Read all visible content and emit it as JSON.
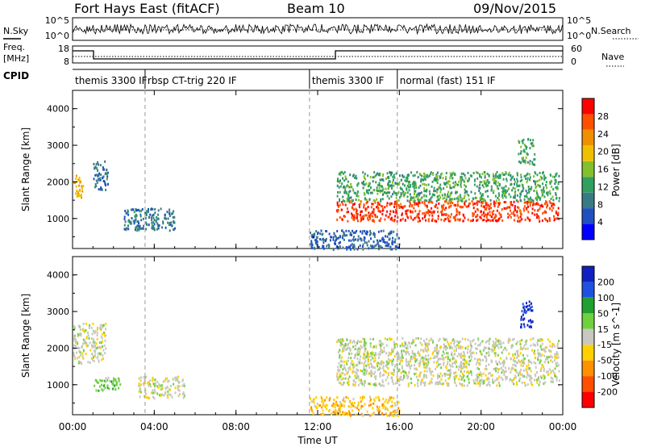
{
  "header": {
    "title": "Fort Hays East (fitACF)",
    "beam": "Beam 10",
    "date": "09/Nov/2015"
  },
  "strips": {
    "nsky_label": "N.Sky",
    "nsearch_label": "N.Search",
    "freq_label_1": "Freq.",
    "freq_label_2": "[MHz]",
    "nave_label": "Nave",
    "cpid_label": "CPID",
    "left_ticks_top": [
      "10^5",
      "10^0"
    ],
    "right_ticks_top": [
      "10^5",
      "10^0"
    ],
    "left_ticks_freq": [
      "18",
      "8"
    ],
    "right_ticks_freq": [
      "60",
      "0"
    ],
    "cpid_segments": [
      {
        "label": "themis 3300 IF",
        "start": 0.0
      },
      {
        "label": "rbsp CT-trig 220 IF",
        "start": 3.55
      },
      {
        "label": "themis 3300 IF",
        "start": 11.6
      },
      {
        "label": "normal (fast) 151 IF",
        "start": 15.9
      }
    ]
  },
  "axes": {
    "x_label": "Time UT",
    "x_ticks": [
      "00:00",
      "04:00",
      "08:00",
      "12:00",
      "16:00",
      "20:00",
      "00:00"
    ],
    "y_label": "Slant Range [km]",
    "y_ticks": [
      "1000",
      "2000",
      "3000",
      "4000"
    ]
  },
  "power_bar": {
    "label": "Power [dB]",
    "ticks": [
      "4",
      "8",
      "12",
      "16",
      "20",
      "24",
      "28"
    ],
    "colors": [
      "#0000ff",
      "#2050c0",
      "#3a7a86",
      "#30a060",
      "#84c02c",
      "#f0c000",
      "#f09000",
      "#ff5000",
      "#ff0000"
    ]
  },
  "velocity_bar": {
    "label": "Velocity [m s^-1]",
    "ticks": [
      "200",
      "100",
      "50",
      "15",
      "-15",
      "-50",
      "-100",
      "-200"
    ],
    "colors": [
      "#1020c0",
      "#2050e0",
      "#20a030",
      "#70d040",
      "#c8c8c0",
      "#ffd000",
      "#ff9000",
      "#ff5000",
      "#ff0000"
    ]
  },
  "chart_data": [
    {
      "type": "heatmap",
      "title": "",
      "xlabel": "Time UT",
      "ylabel": "Slant Range [km]",
      "xlim": [
        0,
        24
      ],
      "ylim": [
        180,
        4500
      ],
      "colorbar": "Power [dB]",
      "colorbar_range": [
        0,
        30
      ],
      "regions": [
        {
          "t": [
            0.0,
            0.5
          ],
          "range": [
            1600,
            2200
          ],
          "value": 20
        },
        {
          "t": [
            1.0,
            1.7
          ],
          "range": [
            1800,
            2600
          ],
          "value": 8
        },
        {
          "t": [
            2.5,
            5.0
          ],
          "range": [
            700,
            1300
          ],
          "value": 8
        },
        {
          "t": [
            12.9,
            23.8
          ],
          "range": [
            950,
            1500
          ],
          "value": 26
        },
        {
          "t": [
            12.9,
            23.8
          ],
          "range": [
            1500,
            2300
          ],
          "value": 12
        },
        {
          "t": [
            21.8,
            22.6
          ],
          "range": [
            2500,
            3200
          ],
          "value": 12
        },
        {
          "t": [
            11.6,
            16.0
          ],
          "range": [
            180,
            700
          ],
          "value": 6
        }
      ]
    },
    {
      "type": "heatmap",
      "title": "",
      "xlabel": "Time UT",
      "ylabel": "Slant Range [km]",
      "xlim": [
        0,
        24
      ],
      "ylim": [
        180,
        4500
      ],
      "colorbar": "Velocity [m s^-1]",
      "colorbar_range": [
        -250,
        250
      ],
      "regions": [
        {
          "t": [
            0.0,
            1.6
          ],
          "range": [
            1600,
            2700
          ],
          "value": 0
        },
        {
          "t": [
            1.0,
            2.3
          ],
          "range": [
            850,
            1250
          ],
          "value": 60
        },
        {
          "t": [
            3.2,
            5.5
          ],
          "range": [
            650,
            1250
          ],
          "value": 0
        },
        {
          "t": [
            12.9,
            23.8
          ],
          "range": [
            1000,
            2300
          ],
          "value": 0
        },
        {
          "t": [
            21.9,
            22.5
          ],
          "range": [
            2600,
            3300
          ],
          "value": 200
        },
        {
          "t": [
            11.6,
            16.0
          ],
          "range": [
            180,
            700
          ],
          "value": -60
        }
      ]
    }
  ]
}
